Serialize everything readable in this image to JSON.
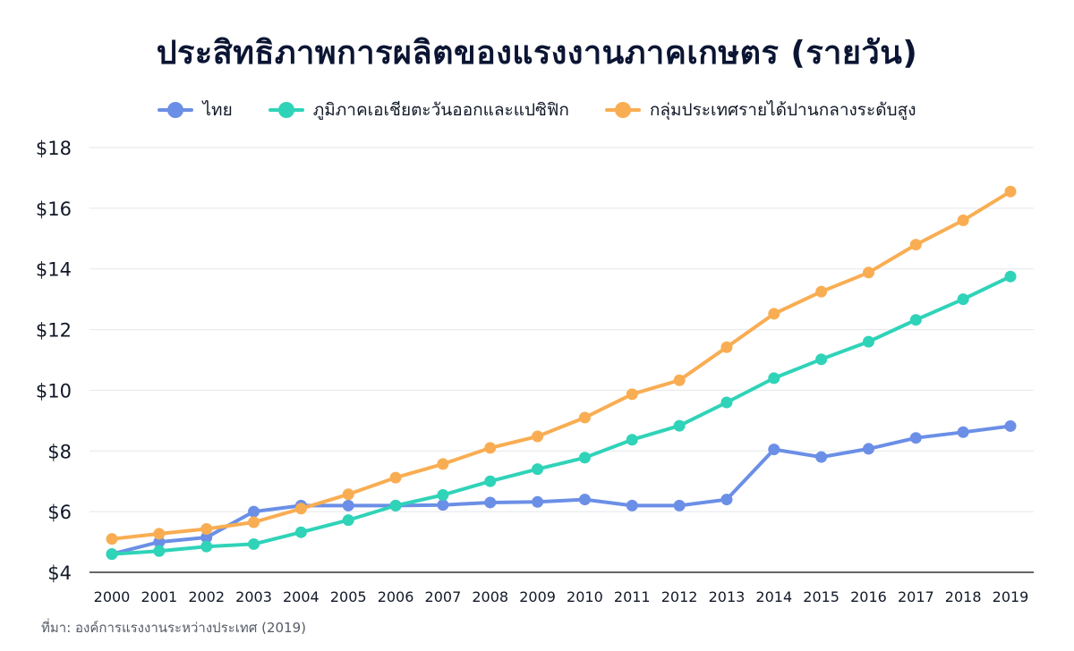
{
  "title": "ประสิทธิภาพการผลิตของแรงงานภาคเกษตร (รายวัน)",
  "source": "ที่มา: องค์การแรงงานระหว่างประเทศ (2019)",
  "colors": {
    "thailand": "#6b8fe6",
    "east_asia": "#2fd3b8",
    "upper_middle": "#f9ad52",
    "grid": "#e5e7eb",
    "axis": "#333333"
  },
  "chart_data": {
    "type": "line",
    "title": "ประสิทธิภาพการผลิตของแรงงานภาคเกษตร (รายวัน)",
    "xlabel": "",
    "ylabel": "",
    "ylim": [
      4,
      18
    ],
    "y_ticks": [
      4,
      6,
      8,
      10,
      12,
      14,
      16,
      18
    ],
    "y_tick_labels": [
      "$4",
      "$6",
      "$8",
      "$10",
      "$12",
      "$14",
      "$16",
      "$18"
    ],
    "categories": [
      "2000",
      "2001",
      "2002",
      "2003",
      "2004",
      "2005",
      "2006",
      "2007",
      "2008",
      "2009",
      "2010",
      "2011",
      "2012",
      "2013",
      "2014",
      "2015",
      "2016",
      "2017",
      "2018",
      "2019"
    ],
    "legend_position": "top-center",
    "grid": true,
    "series": [
      {
        "name": "ไทย",
        "color_key": "thailand",
        "values": [
          4.6,
          5.0,
          5.15,
          6.0,
          6.2,
          6.2,
          6.2,
          6.22,
          6.3,
          6.32,
          6.4,
          6.2,
          6.2,
          6.4,
          8.05,
          7.8,
          8.07,
          8.43,
          8.62,
          8.82
        ]
      },
      {
        "name": "ภูมิภาคเอเชียตะวันออกและแปซิฟิก",
        "color_key": "east_asia",
        "values": [
          4.6,
          4.7,
          4.85,
          4.93,
          5.32,
          5.72,
          6.2,
          6.55,
          7.0,
          7.4,
          7.78,
          8.37,
          8.83,
          9.6,
          10.4,
          11.02,
          11.6,
          12.32,
          13.0,
          13.75
        ]
      },
      {
        "name": "กลุ่มประเทศรายได้ปานกลางระดับสูง",
        "color_key": "upper_middle",
        "values": [
          5.1,
          5.27,
          5.43,
          5.65,
          6.1,
          6.57,
          7.12,
          7.57,
          8.1,
          8.48,
          9.1,
          9.87,
          10.33,
          11.42,
          12.52,
          13.25,
          13.88,
          14.8,
          15.6,
          16.55
        ]
      }
    ]
  }
}
